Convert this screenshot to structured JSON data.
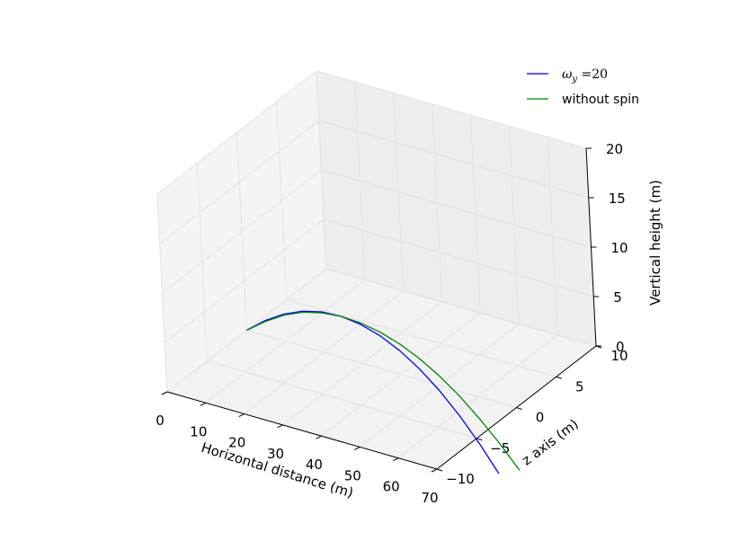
{
  "chart_data": {
    "type": "line",
    "projection": "3d",
    "xlabel": "Horizontal distance (m)",
    "ylabel": "z axis (m)",
    "zlabel": "Vertical height (m)",
    "xlim": [
      0,
      70
    ],
    "ylim": [
      -10,
      10
    ],
    "zlim": [
      0,
      20
    ],
    "x_ticks": [
      "0",
      "10",
      "20",
      "30",
      "40",
      "50",
      "60",
      "70"
    ],
    "y_ticks": [
      "−10",
      "−5",
      "0",
      "5",
      "10"
    ],
    "z_ticks": [
      "0",
      "5",
      "10",
      "15",
      "20"
    ],
    "grid": true,
    "legend_position": "top-right",
    "series": [
      {
        "name": "ω",
        "name_subscript": "y",
        "name_suffix": " =20",
        "color": "#0000ff",
        "x": [
          0,
          5,
          10,
          15,
          20,
          25,
          30,
          35,
          40,
          45,
          50,
          55,
          60,
          64.5
        ],
        "y": [
          0,
          0,
          0,
          0,
          0,
          0,
          0,
          0,
          0,
          0,
          0,
          0,
          0,
          0
        ],
        "z": [
          0,
          1.55,
          2.75,
          3.6,
          4.1,
          4.2,
          3.95,
          3.35,
          2.4,
          1.1,
          -0.55,
          -2.55,
          -4.9,
          -7.3
        ]
      },
      {
        "name": "without spin",
        "color": "#008000",
        "x": [
          0,
          5,
          10,
          15,
          20,
          25,
          30,
          35,
          40,
          45,
          50,
          55,
          60,
          65,
          70
        ],
        "y": [
          0,
          0,
          0,
          0,
          0,
          0,
          0,
          0,
          0,
          0,
          0,
          0,
          0,
          0,
          0
        ],
        "z": [
          0,
          1.45,
          2.65,
          3.5,
          4.0,
          4.2,
          4.1,
          3.75,
          3.1,
          2.2,
          1.0,
          -0.45,
          -2.2,
          -4.15,
          -6.35
        ]
      }
    ]
  }
}
